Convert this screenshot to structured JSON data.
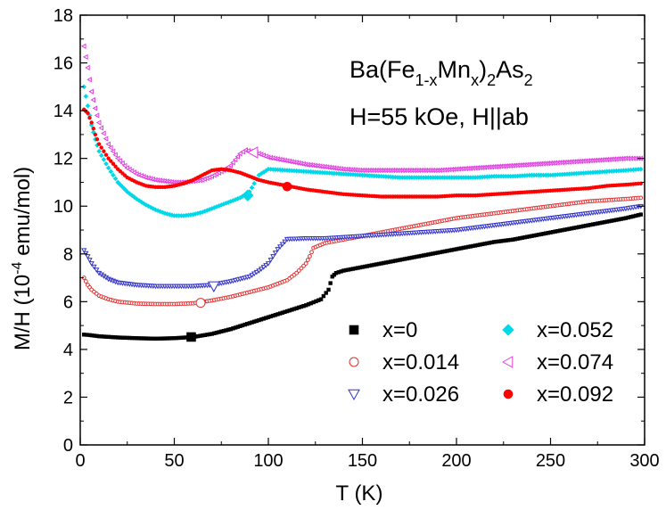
{
  "chart_data": {
    "type": "scatter",
    "x_axis": {
      "label_main": "T (K)",
      "min": 0,
      "max": 300,
      "ticks": [
        0,
        50,
        100,
        150,
        200,
        250,
        300
      ]
    },
    "y_axis": {
      "label_prefix": "M/H (10",
      "label_exp": "-4",
      "label_suffix": " emu/mol)",
      "min": 0,
      "max": 18,
      "ticks": [
        0,
        2,
        4,
        6,
        8,
        10,
        12,
        14,
        16,
        18
      ]
    },
    "annotation": {
      "line1": {
        "p1": "Ba(Fe",
        "s1": "1-x",
        "p2": "Mn",
        "s2": "x",
        "p3": ")",
        "s3": "2",
        "p4": "As",
        "s4": "2"
      },
      "line2": "H=55 kOe, H||ab"
    },
    "legend_placement": "bottom-right",
    "series": [
      {
        "name": "x=0",
        "color": "#000000",
        "marker": "square",
        "filled": true,
        "highlight": [
          59,
          4.52
        ],
        "points": [
          [
            2,
            4.62
          ],
          [
            5,
            4.6
          ],
          [
            10,
            4.55
          ],
          [
            20,
            4.5
          ],
          [
            30,
            4.47
          ],
          [
            40,
            4.45
          ],
          [
            50,
            4.47
          ],
          [
            60,
            4.52
          ],
          [
            70,
            4.65
          ],
          [
            80,
            4.85
          ],
          [
            90,
            5.1
          ],
          [
            100,
            5.35
          ],
          [
            110,
            5.6
          ],
          [
            120,
            5.85
          ],
          [
            128,
            6.1
          ],
          [
            132,
            6.5
          ],
          [
            134,
            7.05
          ],
          [
            136,
            7.2
          ],
          [
            140,
            7.3
          ],
          [
            150,
            7.45
          ],
          [
            160,
            7.6
          ],
          [
            170,
            7.75
          ],
          [
            180,
            7.9
          ],
          [
            190,
            8.05
          ],
          [
            200,
            8.2
          ],
          [
            210,
            8.35
          ],
          [
            220,
            8.5
          ],
          [
            230,
            8.6
          ],
          [
            240,
            8.75
          ],
          [
            250,
            8.9
          ],
          [
            260,
            9.05
          ],
          [
            270,
            9.2
          ],
          [
            280,
            9.35
          ],
          [
            290,
            9.5
          ],
          [
            298,
            9.65
          ]
        ]
      },
      {
        "name": "x=0.014",
        "color": "#e03030",
        "marker": "circle",
        "filled": false,
        "highlight": [
          64,
          5.95
        ],
        "points": [
          [
            2,
            7.0
          ],
          [
            4,
            6.7
          ],
          [
            6,
            6.5
          ],
          [
            10,
            6.25
          ],
          [
            15,
            6.1
          ],
          [
            20,
            6.0
          ],
          [
            30,
            5.92
          ],
          [
            40,
            5.9
          ],
          [
            50,
            5.9
          ],
          [
            60,
            5.93
          ],
          [
            70,
            6.05
          ],
          [
            80,
            6.2
          ],
          [
            90,
            6.4
          ],
          [
            100,
            6.6
          ],
          [
            110,
            6.9
          ],
          [
            115,
            7.2
          ],
          [
            120,
            7.6
          ],
          [
            122,
            7.9
          ],
          [
            124,
            8.25
          ],
          [
            130,
            8.45
          ],
          [
            140,
            8.6
          ],
          [
            150,
            8.75
          ],
          [
            160,
            8.9
          ],
          [
            170,
            9.05
          ],
          [
            180,
            9.2
          ],
          [
            190,
            9.35
          ],
          [
            200,
            9.5
          ],
          [
            210,
            9.6
          ],
          [
            220,
            9.7
          ],
          [
            230,
            9.8
          ],
          [
            240,
            9.9
          ],
          [
            250,
            10.0
          ],
          [
            260,
            10.1
          ],
          [
            270,
            10.2
          ],
          [
            280,
            10.25
          ],
          [
            290,
            10.3
          ],
          [
            298,
            10.35
          ]
        ]
      },
      {
        "name": "x=0.026",
        "color": "#3030cc",
        "marker": "triangle-down",
        "filled": false,
        "highlight": [
          71,
          6.65
        ],
        "points": [
          [
            2,
            8.15
          ],
          [
            4,
            7.9
          ],
          [
            6,
            7.6
          ],
          [
            10,
            7.2
          ],
          [
            15,
            6.95
          ],
          [
            20,
            6.8
          ],
          [
            30,
            6.7
          ],
          [
            40,
            6.65
          ],
          [
            50,
            6.65
          ],
          [
            60,
            6.65
          ],
          [
            70,
            6.7
          ],
          [
            80,
            6.85
          ],
          [
            90,
            7.05
          ],
          [
            95,
            7.3
          ],
          [
            100,
            7.6
          ],
          [
            105,
            8.2
          ],
          [
            110,
            8.62
          ],
          [
            120,
            8.65
          ],
          [
            130,
            8.65
          ],
          [
            140,
            8.7
          ],
          [
            150,
            8.75
          ],
          [
            160,
            8.8
          ],
          [
            170,
            8.85
          ],
          [
            180,
            8.9
          ],
          [
            190,
            8.95
          ],
          [
            200,
            9.0
          ],
          [
            210,
            9.1
          ],
          [
            220,
            9.2
          ],
          [
            230,
            9.3
          ],
          [
            240,
            9.4
          ],
          [
            250,
            9.5
          ],
          [
            260,
            9.6
          ],
          [
            270,
            9.7
          ],
          [
            280,
            9.8
          ],
          [
            290,
            9.9
          ],
          [
            298,
            10.0
          ]
        ]
      },
      {
        "name": "x=0.052",
        "color": "#00d8e8",
        "marker": "diamond",
        "filled": true,
        "highlight": [
          89,
          10.45
        ],
        "points": [
          [
            2,
            15.0
          ],
          [
            4,
            14.2
          ],
          [
            6,
            13.4
          ],
          [
            8,
            12.8
          ],
          [
            10,
            12.3
          ],
          [
            15,
            11.6
          ],
          [
            20,
            11.0
          ],
          [
            25,
            10.6
          ],
          [
            30,
            10.3
          ],
          [
            35,
            10.05
          ],
          [
            40,
            9.85
          ],
          [
            45,
            9.7
          ],
          [
            50,
            9.6
          ],
          [
            55,
            9.6
          ],
          [
            60,
            9.65
          ],
          [
            65,
            9.75
          ],
          [
            70,
            9.9
          ],
          [
            75,
            10.05
          ],
          [
            80,
            10.2
          ],
          [
            85,
            10.35
          ],
          [
            90,
            10.6
          ],
          [
            95,
            11.3
          ],
          [
            100,
            11.55
          ],
          [
            110,
            11.5
          ],
          [
            120,
            11.45
          ],
          [
            130,
            11.4
          ],
          [
            140,
            11.35
          ],
          [
            150,
            11.3
          ],
          [
            160,
            11.25
          ],
          [
            170,
            11.2
          ],
          [
            180,
            11.2
          ],
          [
            190,
            11.2
          ],
          [
            200,
            11.2
          ],
          [
            210,
            11.2
          ],
          [
            220,
            11.25
          ],
          [
            230,
            11.25
          ],
          [
            240,
            11.3
          ],
          [
            250,
            11.3
          ],
          [
            260,
            11.35
          ],
          [
            270,
            11.4
          ],
          [
            280,
            11.45
          ],
          [
            290,
            11.5
          ],
          [
            298,
            11.55
          ]
        ]
      },
      {
        "name": "x=0.074",
        "color": "#e040e0",
        "marker": "triangle-left",
        "filled": false,
        "highlight": [
          92,
          12.25
        ],
        "points": [
          [
            2,
            16.7
          ],
          [
            4,
            15.8
          ],
          [
            6,
            14.8
          ],
          [
            8,
            14.1
          ],
          [
            10,
            13.5
          ],
          [
            15,
            12.6
          ],
          [
            20,
            12.0
          ],
          [
            25,
            11.6
          ],
          [
            30,
            11.35
          ],
          [
            35,
            11.2
          ],
          [
            40,
            11.1
          ],
          [
            45,
            11.05
          ],
          [
            50,
            11.0
          ],
          [
            55,
            11.0
          ],
          [
            60,
            11.05
          ],
          [
            65,
            11.1
          ],
          [
            70,
            11.25
          ],
          [
            75,
            11.45
          ],
          [
            80,
            11.7
          ],
          [
            85,
            12.2
          ],
          [
            88,
            12.35
          ],
          [
            95,
            12.2
          ],
          [
            100,
            12.05
          ],
          [
            110,
            11.9
          ],
          [
            120,
            11.75
          ],
          [
            130,
            11.65
          ],
          [
            140,
            11.55
          ],
          [
            150,
            11.5
          ],
          [
            160,
            11.5
          ],
          [
            170,
            11.5
          ],
          [
            180,
            11.5
          ],
          [
            190,
            11.5
          ],
          [
            200,
            11.55
          ],
          [
            210,
            11.6
          ],
          [
            220,
            11.65
          ],
          [
            230,
            11.7
          ],
          [
            240,
            11.75
          ],
          [
            250,
            11.8
          ],
          [
            260,
            11.85
          ],
          [
            270,
            11.9
          ],
          [
            280,
            11.95
          ],
          [
            290,
            12.0
          ],
          [
            298,
            12.0
          ]
        ]
      },
      {
        "name": "x=0.092",
        "color": "#ff0000",
        "marker": "circle",
        "filled": true,
        "highlight": [
          110,
          10.82
        ],
        "points": [
          [
            2,
            14.05
          ],
          [
            4,
            13.9
          ],
          [
            6,
            13.5
          ],
          [
            8,
            13.0
          ],
          [
            10,
            12.6
          ],
          [
            15,
            12.0
          ],
          [
            20,
            11.55
          ],
          [
            25,
            11.2
          ],
          [
            30,
            11.0
          ],
          [
            35,
            10.85
          ],
          [
            40,
            10.8
          ],
          [
            45,
            10.8
          ],
          [
            50,
            10.85
          ],
          [
            55,
            10.95
          ],
          [
            60,
            11.1
          ],
          [
            65,
            11.3
          ],
          [
            70,
            11.5
          ],
          [
            75,
            11.55
          ],
          [
            80,
            11.5
          ],
          [
            85,
            11.4
          ],
          [
            90,
            11.25
          ],
          [
            95,
            11.1
          ],
          [
            100,
            11.0
          ],
          [
            110,
            10.85
          ],
          [
            120,
            10.7
          ],
          [
            130,
            10.6
          ],
          [
            140,
            10.5
          ],
          [
            150,
            10.45
          ],
          [
            160,
            10.4
          ],
          [
            170,
            10.4
          ],
          [
            180,
            10.4
          ],
          [
            190,
            10.4
          ],
          [
            200,
            10.45
          ],
          [
            210,
            10.45
          ],
          [
            220,
            10.5
          ],
          [
            230,
            10.55
          ],
          [
            240,
            10.6
          ],
          [
            250,
            10.65
          ],
          [
            260,
            10.7
          ],
          [
            270,
            10.75
          ],
          [
            280,
            10.85
          ],
          [
            290,
            10.9
          ],
          [
            298,
            10.95
          ]
        ]
      }
    ]
  }
}
